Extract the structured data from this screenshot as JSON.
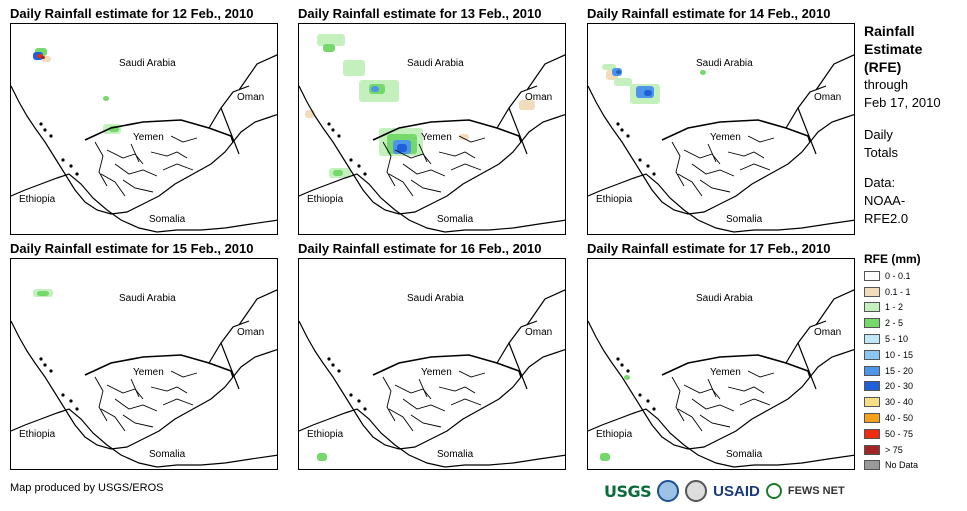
{
  "panels": [
    {
      "title": "Daily Rainfall estimate for 12 Feb., 2010"
    },
    {
      "title": "Daily Rainfall estimate for 13 Feb., 2010"
    },
    {
      "title": "Daily Rainfall estimate for 14 Feb., 2010"
    },
    {
      "title": "Daily Rainfall estimate for 15 Feb., 2010"
    },
    {
      "title": "Daily Rainfall estimate for 16 Feb., 2010"
    },
    {
      "title": "Daily Rainfall estimate for 17 Feb., 2010"
    }
  ],
  "map_labels": {
    "saudi": "Saudi Arabia",
    "oman": "Oman",
    "yemen": "Yemen",
    "ethiopia": "Ethiopia",
    "somalia": "Somalia"
  },
  "sidebar": {
    "title_line1": "Rainfall",
    "title_line2": "Estimate",
    "title_line3": "(RFE)",
    "through": "through",
    "date": "Feb 17, 2010",
    "daily": "Daily",
    "totals": "Totals",
    "data_label": "Data:",
    "data_src1": "NOAA-",
    "data_src2": "RFE2.0"
  },
  "legend": {
    "title": "RFE (mm)",
    "items": [
      {
        "label": "0 - 0.1",
        "color": "#ffffff"
      },
      {
        "label": "0.1 - 1",
        "color": "#f1dcbc"
      },
      {
        "label": "1 - 2",
        "color": "#c3f0bd"
      },
      {
        "label": "2 - 5",
        "color": "#74d86a"
      },
      {
        "label": "5 - 10",
        "color": "#bfe9f7"
      },
      {
        "label": "10 - 15",
        "color": "#8cc6f0"
      },
      {
        "label": "15 - 20",
        "color": "#4d95e8"
      },
      {
        "label": "20 - 30",
        "color": "#1f5fd8"
      },
      {
        "label": "30 - 40",
        "color": "#f8df86"
      },
      {
        "label": "40 - 50",
        "color": "#f5a11b"
      },
      {
        "label": "50 - 75",
        "color": "#ee2a12"
      },
      {
        "label": "> 75",
        "color": "#a32424"
      },
      {
        "label": "No Data",
        "color": "#999999"
      }
    ]
  },
  "footer": {
    "credit": "Map produced by USGS/EROS"
  },
  "logos": {
    "usgs": "USGS",
    "usaid": "USAID",
    "fews": "FEWS NET"
  }
}
